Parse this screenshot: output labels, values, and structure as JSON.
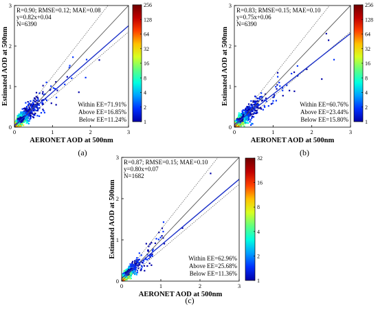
{
  "figure": {
    "colors": {
      "one_to_one": "#555555",
      "ee_bounds": "#555555",
      "regression": "#1a2fc8",
      "axis": "#000000",
      "colorscale": [
        "#0000a8",
        "#0030ff",
        "#00a0ff",
        "#00ffe0",
        "#60ff80",
        "#d8ff20",
        "#ffc000",
        "#ff4000",
        "#c00000",
        "#6e0000"
      ]
    }
  },
  "chart_data": [
    {
      "type": "scatter",
      "panel_label": "(a)",
      "xlabel": "AERONET AOD at 500nm",
      "ylabel": "Estimated AOD at 500nm",
      "xlim": [
        0,
        3
      ],
      "ylim": [
        0,
        3
      ],
      "xticks": [
        "0",
        "1",
        "2",
        "3"
      ],
      "yticks": [
        "0",
        "1",
        "2",
        "3"
      ],
      "stats_lines": [
        "R=0.90; RMSE=0.12; MAE=0.08",
        "y=0.82x+0.04",
        "N=6390"
      ],
      "ee_lines": [
        "Within EE=71.91%",
        "Above EE=16.85%",
        "Below EE=11.24%"
      ],
      "regression": {
        "slope": 0.82,
        "intercept": 0.04
      },
      "n": 6390,
      "colorbar": {
        "ticks": [
          "256",
          "128",
          "64",
          "32",
          "16",
          "8",
          "4",
          "2",
          "1"
        ],
        "scale": "log2"
      },
      "grid": false
    },
    {
      "type": "scatter",
      "panel_label": "(b)",
      "xlabel": "AERONET AOD at 500nm",
      "ylabel": "Estimated AOD at 500nm",
      "xlim": [
        0,
        3
      ],
      "ylim": [
        0,
        3
      ],
      "xticks": [
        "0",
        "1",
        "2",
        "3"
      ],
      "yticks": [
        "0",
        "1",
        "2",
        "3"
      ],
      "stats_lines": [
        "R=0.83; RMSE=0.15; MAE=0.10",
        "y=0.75x+0.06",
        "N=6390"
      ],
      "ee_lines": [
        "Within EE=60.76%",
        "Above EE=23.44%",
        "Below EE=15.80%"
      ],
      "regression": {
        "slope": 0.75,
        "intercept": 0.06
      },
      "n": 6390,
      "colorbar": {
        "ticks": [
          "256",
          "128",
          "64",
          "32",
          "16",
          "8",
          "4",
          "2",
          "1"
        ],
        "scale": "log2"
      },
      "grid": false
    },
    {
      "type": "scatter",
      "panel_label": "(c)",
      "xlabel": "AERONET AOD at 500nm",
      "ylabel": "Estimated AOD at 500nm",
      "xlim": [
        0,
        3
      ],
      "ylim": [
        0,
        3
      ],
      "xticks": [
        "0",
        "1",
        "2",
        "3"
      ],
      "yticks": [
        "0",
        "1",
        "2",
        "3"
      ],
      "stats_lines": [
        "R=0.87; RMSE=0.15; MAE=0.10",
        "y=0.80x+0.07",
        "N=1682"
      ],
      "ee_lines": [
        "Within EE=62.96%",
        "Above EE=25.68%",
        "Below EE=11.36%"
      ],
      "regression": {
        "slope": 0.8,
        "intercept": 0.07
      },
      "n": 1682,
      "colorbar": {
        "ticks": [
          "32",
          "16",
          "8",
          "4",
          "2",
          "1"
        ],
        "scale": "log2"
      },
      "grid": false
    }
  ]
}
